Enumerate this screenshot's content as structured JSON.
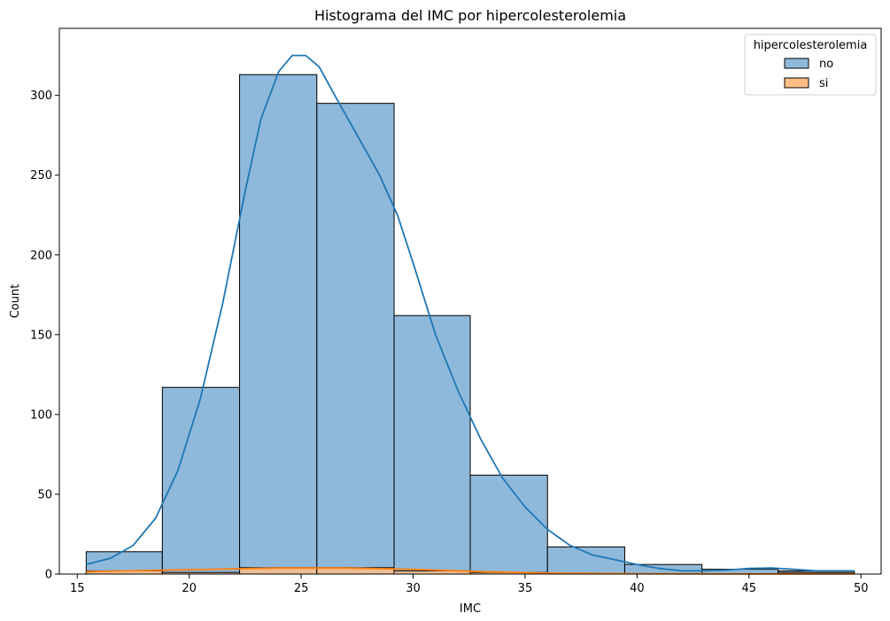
{
  "chart_data": {
    "type": "bar",
    "title": "Histograma del IMC por hipercolesterolemia",
    "xlabel": "IMC",
    "ylabel": "Count",
    "xlim": [
      14.2,
      50.9
    ],
    "ylim": [
      0,
      342
    ],
    "xticks": [
      15,
      20,
      25,
      30,
      35,
      40,
      45,
      50
    ],
    "yticks": [
      0,
      50,
      100,
      150,
      200,
      250,
      300
    ],
    "grid": false,
    "bin_edges": [
      15.4,
      18.8,
      22.25,
      25.7,
      29.15,
      32.55,
      36.0,
      39.45,
      42.9,
      46.3,
      49.7
    ],
    "series": [
      {
        "name": "no",
        "color": "#1f77b4",
        "fill": "#8fb9da",
        "values": [
          14,
          117,
          313,
          295,
          162,
          62,
          17,
          6,
          3,
          2
        ],
        "kde": [
          [
            15.4,
            6
          ],
          [
            16.5,
            10
          ],
          [
            17.5,
            18
          ],
          [
            18.5,
            35
          ],
          [
            19.5,
            65
          ],
          [
            20.5,
            110
          ],
          [
            21.5,
            170
          ],
          [
            22.5,
            240
          ],
          [
            23.2,
            285
          ],
          [
            24.0,
            315
          ],
          [
            24.6,
            325
          ],
          [
            25.2,
            325
          ],
          [
            25.8,
            318
          ],
          [
            26.5,
            300
          ],
          [
            27.5,
            275
          ],
          [
            28.5,
            250
          ],
          [
            29.3,
            225
          ],
          [
            30.0,
            195
          ],
          [
            31.0,
            150
          ],
          [
            32.0,
            115
          ],
          [
            33.0,
            85
          ],
          [
            34.0,
            60
          ],
          [
            35.0,
            42
          ],
          [
            36.0,
            28
          ],
          [
            37.0,
            18
          ],
          [
            38.0,
            12
          ],
          [
            39.0,
            9
          ],
          [
            40.0,
            6
          ],
          [
            41.0,
            3.5
          ],
          [
            42.0,
            2
          ],
          [
            43.0,
            2
          ],
          [
            44.0,
            2.5
          ],
          [
            45.0,
            3.5
          ],
          [
            46.0,
            3.8
          ],
          [
            47.0,
            3
          ],
          [
            48.0,
            2
          ],
          [
            49.7,
            2
          ]
        ]
      },
      {
        "name": "si",
        "color": "#ff7f0e",
        "fill": "#ffbe86",
        "values": [
          2,
          1,
          4,
          4,
          2,
          1,
          0,
          0,
          0,
          1
        ],
        "kde": [
          [
            15.4,
            1.5
          ],
          [
            18,
            2.2
          ],
          [
            21,
            3
          ],
          [
            24,
            3.8
          ],
          [
            27,
            3.8
          ],
          [
            30,
            3
          ],
          [
            33,
            1.5
          ],
          [
            36,
            0.6
          ],
          [
            40,
            0.2
          ],
          [
            45,
            0.1
          ],
          [
            49.7,
            0.1
          ]
        ]
      }
    ],
    "legend": {
      "title": "hipercolesterolemia",
      "placement": "upper-right"
    }
  }
}
